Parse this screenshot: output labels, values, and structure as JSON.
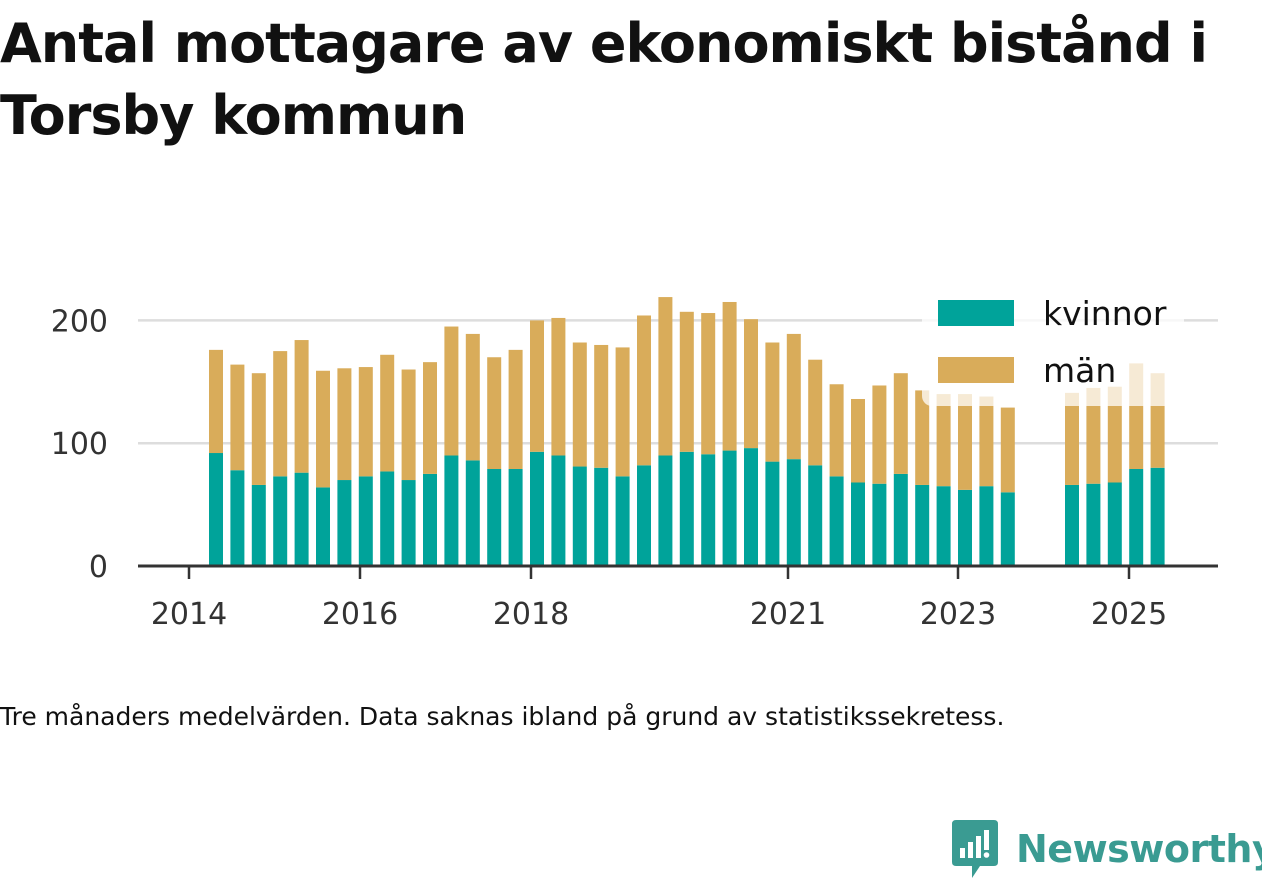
{
  "title": "Antal mottagare av ekonomiskt bistånd i Torsby kommun",
  "caption": "Tre månaders medelvärden. Data saknas ibland på grund av statistikssekretess.",
  "brand": "Newsworthy",
  "colors": {
    "kvinnor": "#00a39a",
    "man": "#d9ac5a",
    "axis": "#333333",
    "grid": "#dddddd",
    "brand": "#3a9b92"
  },
  "chart_data": {
    "type": "bar",
    "stacked": true,
    "legend_position": "top-right",
    "grid": true,
    "x_ticks": [
      "2014",
      "2016",
      "2018",
      "2021",
      "2023",
      "2025"
    ],
    "y_ticks": [
      "0",
      "100",
      "200"
    ],
    "ylim": [
      0,
      230
    ],
    "series": [
      {
        "name": "kvinnor",
        "values": [
          92,
          78,
          66,
          73,
          76,
          64,
          70,
          73,
          77,
          70,
          75,
          90,
          86,
          79,
          79,
          93,
          90,
          81,
          80,
          73,
          82,
          90,
          93,
          91,
          94,
          96,
          85,
          87,
          82,
          73,
          68,
          67,
          75,
          66,
          65,
          62,
          65,
          60,
          null,
          null,
          66,
          67,
          68,
          79,
          80
        ]
      },
      {
        "name": "män",
        "values": [
          84,
          86,
          91,
          102,
          108,
          95,
          91,
          89,
          95,
          90,
          91,
          105,
          103,
          91,
          97,
          107,
          112,
          101,
          100,
          105,
          122,
          129,
          114,
          115,
          121,
          105,
          97,
          102,
          86,
          75,
          68,
          80,
          82,
          77,
          75,
          78,
          73,
          69,
          null,
          null,
          75,
          78,
          78,
          86,
          77
        ]
      }
    ]
  }
}
